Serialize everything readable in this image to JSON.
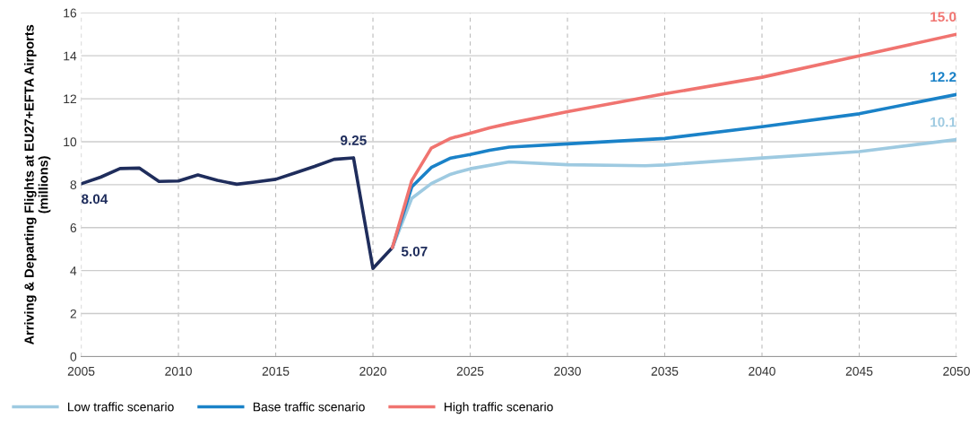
{
  "chart_data": {
    "type": "line",
    "ylabel": "Arriving & Departing Flights at EU27+EFTA Airports\n(millions)",
    "xlim": [
      2005,
      2050
    ],
    "xticks": [
      2005,
      2010,
      2015,
      2020,
      2025,
      2030,
      2035,
      2040,
      2045,
      2050
    ],
    "ylim": [
      0,
      16
    ],
    "yticks": [
      0,
      2,
      4,
      6,
      8,
      10,
      12,
      14,
      16
    ],
    "grid": true,
    "legend": "bottom",
    "line_style": "solid",
    "marker": "none",
    "series": [
      {
        "color": "#1f2d5c",
        "x": [
          2005,
          2006,
          2007,
          2008,
          2009,
          2010,
          2011,
          2012,
          2013,
          2014,
          2015,
          2016,
          2017,
          2018,
          2019,
          2020,
          2021
        ],
        "values": [
          8.04,
          8.35,
          8.75,
          8.77,
          8.15,
          8.17,
          8.45,
          8.2,
          8.02,
          8.13,
          8.25,
          8.55,
          8.85,
          9.18,
          9.25,
          4.1,
          5.07
        ],
        "value_labels": [
          "8.04",
          null,
          null,
          null,
          null,
          null,
          null,
          null,
          null,
          null,
          null,
          null,
          null,
          null,
          "9.25",
          null,
          "5.07"
        ]
      },
      {
        "name": "Low traffic scenario",
        "color": "#9ecae1",
        "x": [
          2021,
          2022,
          2023,
          2024,
          2025,
          2027,
          2030,
          2034,
          2035,
          2040,
          2045,
          2050
        ],
        "values": [
          5.07,
          7.37,
          8.05,
          8.49,
          8.74,
          9.06,
          8.93,
          8.88,
          8.92,
          9.24,
          9.54,
          10.1
        ],
        "value_labels": [
          null,
          null,
          null,
          null,
          null,
          null,
          null,
          null,
          null,
          null,
          null,
          "10.1"
        ]
      },
      {
        "name": "Base traffic scenario",
        "color": "#1a82c8",
        "x": [
          2021,
          2022,
          2023,
          2024,
          2025,
          2026,
          2027,
          2030,
          2035,
          2040,
          2045,
          2050
        ],
        "values": [
          5.07,
          7.9,
          8.8,
          9.24,
          9.4,
          9.6,
          9.75,
          9.9,
          10.15,
          10.7,
          11.3,
          12.2
        ],
        "value_labels": [
          null,
          null,
          null,
          null,
          null,
          null,
          null,
          null,
          null,
          null,
          null,
          "12.2"
        ]
      },
      {
        "name": "High traffic scenario",
        "color": "#f07470",
        "x": [
          2021,
          2022,
          2023,
          2024,
          2025,
          2026,
          2027,
          2030,
          2035,
          2040,
          2045,
          2050
        ],
        "values": [
          5.07,
          8.2,
          9.7,
          10.16,
          10.4,
          10.65,
          10.85,
          11.4,
          12.23,
          13.0,
          14.0,
          15.0
        ],
        "value_labels": [
          null,
          null,
          null,
          null,
          null,
          null,
          null,
          null,
          null,
          null,
          null,
          "15.0"
        ]
      }
    ]
  }
}
